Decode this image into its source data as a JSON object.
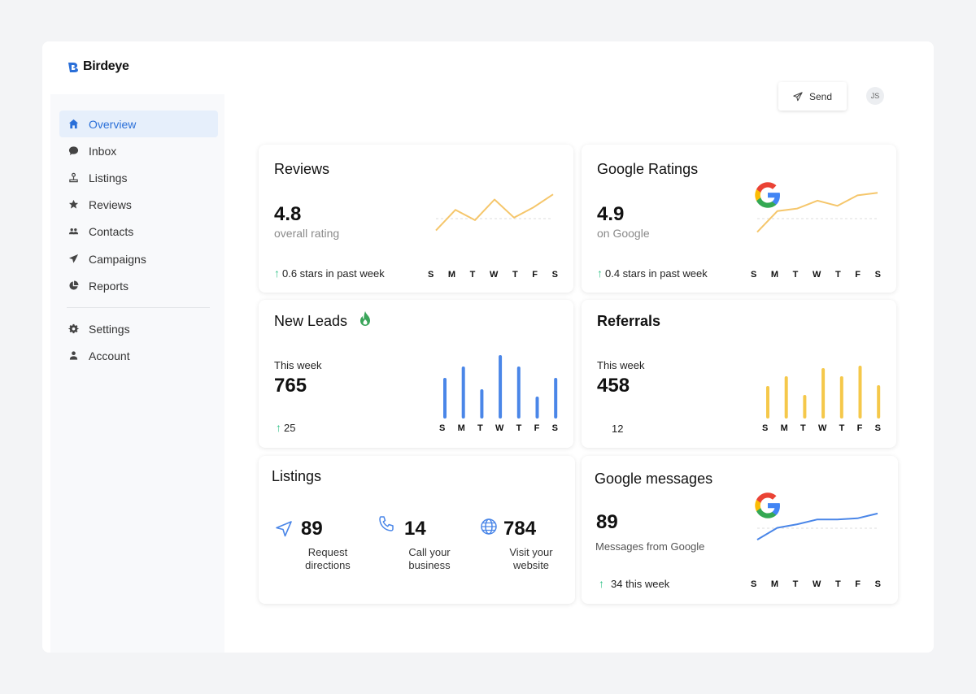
{
  "brand": {
    "name": "Birdeye",
    "color": "#2a6fd8"
  },
  "nav": {
    "items": [
      {
        "label": "Overview",
        "icon": "home-icon"
      },
      {
        "label": "Inbox",
        "icon": "chat-icon"
      },
      {
        "label": "Listings",
        "icon": "pin-icon"
      },
      {
        "label": "Reviews",
        "icon": "star-icon"
      },
      {
        "label": "Contacts",
        "icon": "people-icon"
      },
      {
        "label": "Campaigns",
        "icon": "send-icon"
      },
      {
        "label": "Reports",
        "icon": "pie-icon"
      },
      {
        "label": "Settings",
        "icon": "gear-icon"
      },
      {
        "label": "Account",
        "icon": "person-icon"
      }
    ],
    "active": "Overview"
  },
  "header": {
    "send_label": "Send",
    "avatar_initials": "JS"
  },
  "days": [
    "S",
    "M",
    "T",
    "W",
    "T",
    "F",
    "S"
  ],
  "reviews": {
    "title": "Reviews",
    "value": "4.8",
    "caption": "overall rating",
    "trend": "0.6 stars in past week",
    "line_color": "#f5c66b",
    "series": [
      3.6,
      4.4,
      4.0,
      4.8,
      4.1,
      4.5,
      5.0
    ]
  },
  "google_ratings": {
    "title": "Google Ratings",
    "value": "4.9",
    "caption": "on Google",
    "trend": "0.4 stars in past week",
    "line_color": "#f5c66b",
    "series": [
      3.2,
      4.0,
      4.1,
      4.4,
      4.2,
      4.6,
      4.7
    ]
  },
  "new_leads": {
    "title": "New Leads",
    "week_label": "This week",
    "value": "765",
    "trend": "25",
    "bar_color": "#4a86e8",
    "values": [
      50,
      64,
      36,
      78,
      64,
      27,
      50
    ]
  },
  "referrals": {
    "title": "Referrals",
    "week_label": "This week",
    "value": "458",
    "trend": "12",
    "bar_color": "#f5c84a",
    "values": [
      40,
      52,
      29,
      62,
      52,
      65,
      41
    ]
  },
  "listings": {
    "title": "Listings",
    "items": [
      {
        "icon": "navigation-arrow-icon",
        "value": "89",
        "label1": "Request",
        "label2": "directions"
      },
      {
        "icon": "phone-icon",
        "value": "14",
        "label1": "Call your",
        "label2": "business"
      },
      {
        "icon": "globe-icon",
        "value": "784",
        "label1": "Visit your",
        "label2": "website"
      }
    ]
  },
  "google_messages": {
    "title": "Google messages",
    "value": "89",
    "caption": "Messages from Google",
    "trend": "34 this week",
    "line_color": "#4a86e8",
    "series": [
      2.0,
      3.0,
      3.3,
      3.7,
      3.7,
      3.8,
      4.2
    ]
  }
}
